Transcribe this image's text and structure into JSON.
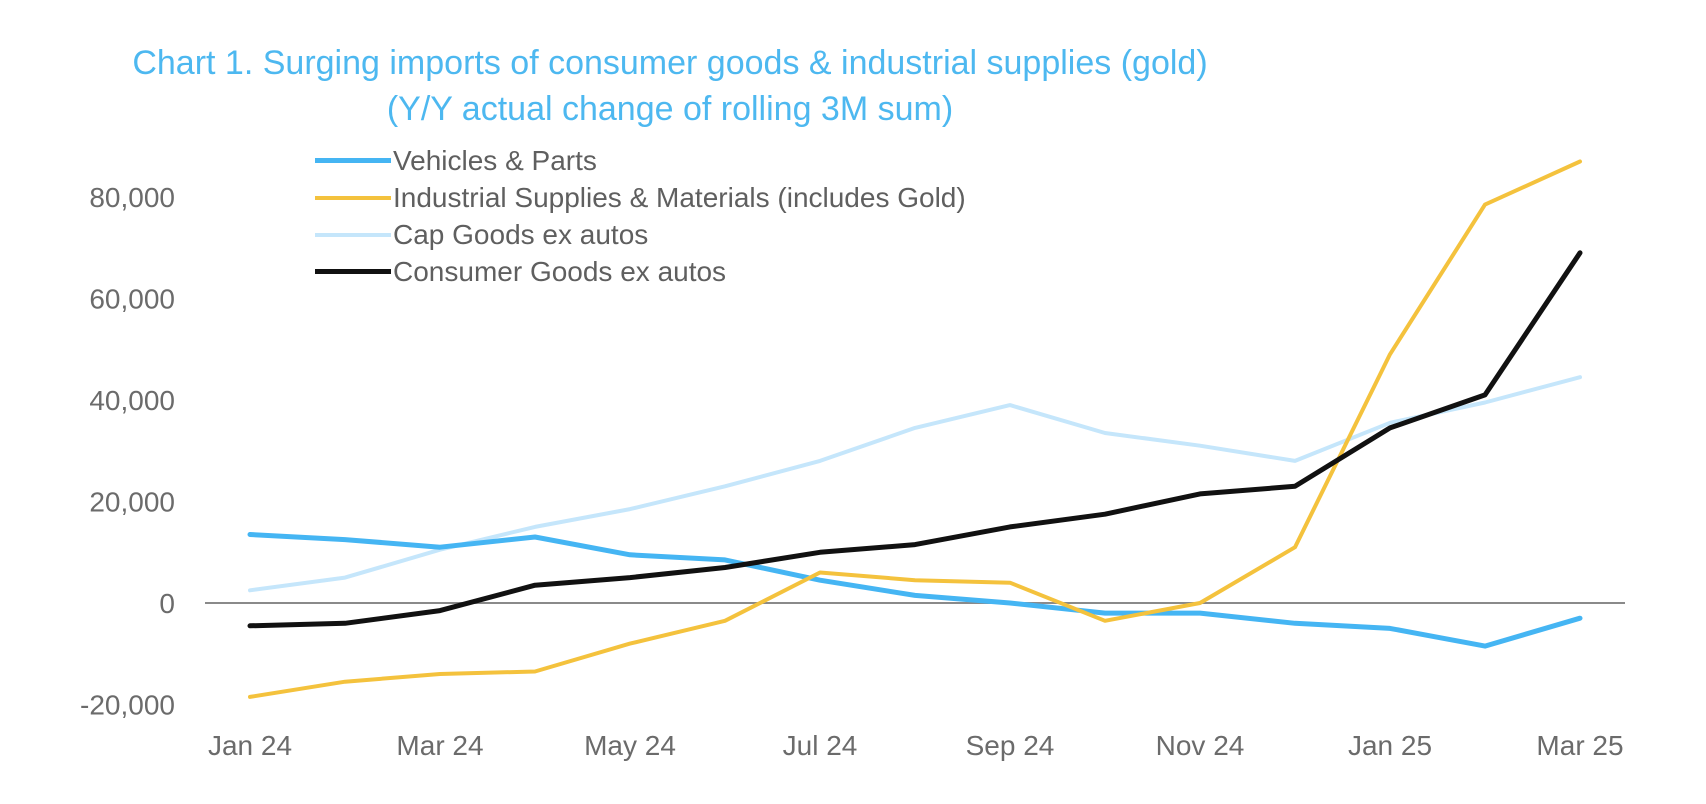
{
  "chart_data": {
    "type": "line",
    "title": "Chart 1. Surging imports of consumer goods & industrial supplies (gold)",
    "subtitle": "(Y/Y actual change of rolling 3M sum)",
    "x": [
      "Jan 24",
      "Feb 24",
      "Mar 24",
      "Apr 24",
      "May 24",
      "Jun 24",
      "Jul 24",
      "Aug 24",
      "Sep 24",
      "Oct 24",
      "Nov 24",
      "Dec 24",
      "Jan 25",
      "Feb 25",
      "Mar 25"
    ],
    "x_tick_labels": [
      "Jan 24",
      "Mar 24",
      "May 24",
      "Jul 24",
      "Sep 24",
      "Nov 24",
      "Jan 25",
      "Mar 25"
    ],
    "y_ticks": [
      -20000,
      0,
      20000,
      40000,
      60000,
      80000
    ],
    "y_tick_labels": [
      "-20,000",
      "0",
      "20,000",
      "40,000",
      "60,000",
      "80,000"
    ],
    "ylim": [
      -20000,
      85000
    ],
    "grid": false,
    "zero_line": true,
    "legend_position": "top-left",
    "series": [
      {
        "name": "Vehicles & Parts",
        "color": "#45b5f3",
        "width": 5,
        "values": [
          13500,
          12500,
          11000,
          13000,
          9500,
          8500,
          4500,
          1500,
          0,
          -2000,
          -2000,
          -4000,
          -5000,
          -8500,
          -3000
        ]
      },
      {
        "name": "Industrial Supplies & Materials (includes Gold)",
        "color": "#f4c23d",
        "width": 4,
        "values": [
          -18500,
          -15500,
          -14000,
          -13500,
          -8000,
          -3500,
          6000,
          4500,
          4000,
          -3500,
          0,
          11000,
          49000,
          78500,
          87000
        ]
      },
      {
        "name": "Cap Goods ex autos",
        "color": "#c5e6fb",
        "width": 4,
        "values": [
          2500,
          5000,
          10500,
          15000,
          18500,
          23000,
          28000,
          34500,
          39000,
          33500,
          31000,
          28000,
          35500,
          39500,
          44500
        ]
      },
      {
        "name": "Consumer Goods ex autos",
        "color": "#111111",
        "width": 5,
        "values": [
          -4500,
          -4000,
          -1500,
          3500,
          5000,
          7000,
          10000,
          11500,
          15000,
          17500,
          21500,
          23000,
          34500,
          41000,
          69000
        ]
      }
    ]
  }
}
